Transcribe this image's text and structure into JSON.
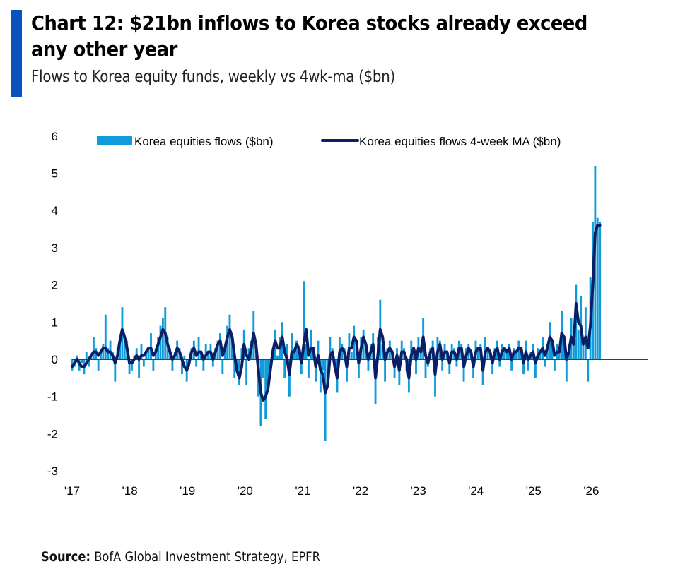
{
  "header": {
    "title": "Chart 12: $21bn inflows to Korea stocks already exceed any other year",
    "subtitle": "Flows to Korea equity funds, weekly vs 4wk-ma ($bn)"
  },
  "footer": {
    "source_label": "Source:",
    "source_text": "BofA Global Investment Strategy, EPFR"
  },
  "colors": {
    "accent": "#0a52be",
    "bars": "#129bdb",
    "ma_line": "#0b1f66",
    "zero_line": "#404040"
  },
  "chart_data": {
    "type": "bar",
    "title": "Chart 12: $21bn inflows to Korea stocks already exceed any other year",
    "subtitle": "Flows to Korea equity funds, weekly vs 4wk-ma ($bn)",
    "xlabel": "",
    "ylabel": "",
    "ylim": [
      -3,
      6
    ],
    "yticks": [
      6,
      5,
      4,
      3,
      2,
      1,
      0,
      -1,
      -2,
      -3
    ],
    "xlim": [
      2017.0,
      2026.9
    ],
    "xticks": [
      {
        "x": 2017,
        "label": "'17"
      },
      {
        "x": 2018,
        "label": "'18"
      },
      {
        "x": 2019,
        "label": "'19"
      },
      {
        "x": 2020,
        "label": "'20"
      },
      {
        "x": 2021,
        "label": "'21"
      },
      {
        "x": 2022,
        "label": "'22"
      },
      {
        "x": 2023,
        "label": "'23"
      },
      {
        "x": 2024,
        "label": "'24"
      },
      {
        "x": 2025,
        "label": "'25"
      },
      {
        "x": 2026,
        "label": "'26"
      }
    ],
    "grid": false,
    "legend_position": "top",
    "x_start": 2017.0,
    "x_step_years": 0.0417,
    "series": [
      {
        "name": "Korea equities flows ($bn)",
        "type": "bar",
        "values": [
          -0.3,
          -0.2,
          0.1,
          -0.3,
          -0.1,
          -0.4,
          0.2,
          -0.2,
          0.1,
          0.6,
          0.3,
          -0.3,
          0.2,
          0.4,
          1.2,
          0.3,
          0.5,
          0.2,
          -0.6,
          0.3,
          0.6,
          1.4,
          0.4,
          0.5,
          -0.4,
          -0.3,
          0.1,
          0.3,
          -0.5,
          0.4,
          -0.2,
          0.2,
          0.3,
          0.7,
          -0.3,
          0.3,
          0.6,
          0.9,
          1.1,
          1.4,
          0.6,
          0.3,
          -0.3,
          0.2,
          0.5,
          0.3,
          -0.4,
          0.1,
          -0.6,
          -0.2,
          0.3,
          0.5,
          -0.2,
          0.6,
          0.2,
          -0.3,
          0.4,
          0.2,
          0.4,
          -0.2,
          0.3,
          0.5,
          0.7,
          -0.4,
          0.3,
          0.9,
          1.2,
          0.5,
          -0.5,
          -0.3,
          -0.7,
          0.3,
          0.8,
          -0.7,
          0.3,
          0.5,
          1.3,
          0.4,
          -1.0,
          -1.8,
          -0.5,
          -1.6,
          -0.9,
          -0.3,
          0.3,
          0.8,
          0.1,
          0.6,
          1.0,
          -0.5,
          0.4,
          -1.0,
          0.7,
          0.2,
          0.5,
          0.3,
          -0.4,
          2.1,
          0.4,
          -0.5,
          0.8,
          0.3,
          -0.6,
          0.5,
          -0.9,
          -0.3,
          -2.2,
          -0.7,
          0.6,
          0.3,
          -0.3,
          -0.9,
          0.6,
          0.4,
          0.3,
          -0.6,
          0.7,
          0.2,
          0.9,
          0.5,
          -0.5,
          0.6,
          0.8,
          0.2,
          -0.3,
          0.4,
          0.7,
          -1.2,
          0.6,
          1.6,
          0.4,
          -0.6,
          0.3,
          0.5,
          0.2,
          -0.5,
          0.3,
          -0.7,
          0.5,
          0.3,
          -0.3,
          -0.9,
          0.5,
          0.3,
          -0.4,
          0.6,
          0.2,
          1.1,
          -0.5,
          -0.2,
          0.3,
          0.5,
          -1.0,
          0.6,
          0.5,
          -0.3,
          0.4,
          0.2,
          -0.4,
          0.4,
          0.3,
          -0.2,
          0.5,
          0.4,
          -0.6,
          0.3,
          0.4,
          0.2,
          -0.5,
          0.5,
          0.3,
          0.4,
          -0.7,
          0.6,
          0.3,
          0.2,
          -0.4,
          0.3,
          0.5,
          -0.2,
          0.4,
          0.3,
          0.2,
          0.4,
          -0.3,
          0.3,
          0.2,
          0.5,
          0.3,
          -0.4,
          0.5,
          -0.3,
          0.2,
          0.4,
          -0.5,
          0.3,
          0.2,
          0.6,
          -0.2,
          0.4,
          1.0,
          0.5,
          -0.3,
          0.4,
          0.2,
          1.3,
          0.6,
          -0.6,
          0.4,
          1.1,
          0.5,
          2.0,
          0.8,
          1.7,
          0.4,
          1.4,
          -0.6,
          2.2,
          3.7,
          5.2,
          3.8,
          3.7
        ]
      },
      {
        "name": "Korea equities flows 4-week MA ($bn)",
        "type": "line",
        "values": [
          -0.2,
          -0.1,
          0.0,
          -0.1,
          -0.2,
          -0.2,
          -0.1,
          0.0,
          0.1,
          0.2,
          0.2,
          0.1,
          0.2,
          0.3,
          0.3,
          0.2,
          0.2,
          0.1,
          -0.1,
          0.1,
          0.5,
          0.8,
          0.6,
          0.3,
          -0.1,
          -0.1,
          0.0,
          0.1,
          0.0,
          0.1,
          0.1,
          0.2,
          0.3,
          0.3,
          0.1,
          0.2,
          0.4,
          0.6,
          0.8,
          0.7,
          0.4,
          0.2,
          0.0,
          0.1,
          0.3,
          0.2,
          0.0,
          -0.2,
          -0.3,
          -0.1,
          0.2,
          0.3,
          0.1,
          0.2,
          0.2,
          0.0,
          0.1,
          0.2,
          0.2,
          0.0,
          0.2,
          0.4,
          0.5,
          0.1,
          0.3,
          0.6,
          0.8,
          0.6,
          0.1,
          -0.3,
          -0.5,
          -0.2,
          0.4,
          0.1,
          0.0,
          0.3,
          0.7,
          0.4,
          -0.3,
          -0.9,
          -1.1,
          -1.0,
          -0.8,
          -0.3,
          0.2,
          0.5,
          0.3,
          0.3,
          0.6,
          0.2,
          0.0,
          -0.4,
          0.2,
          0.2,
          0.4,
          0.3,
          -0.1,
          0.4,
          0.8,
          0.1,
          0.3,
          0.3,
          -0.2,
          0.1,
          -0.3,
          -0.4,
          -0.9,
          -0.7,
          0.1,
          0.2,
          -0.2,
          -0.5,
          0.2,
          0.3,
          0.2,
          -0.2,
          0.3,
          0.3,
          0.6,
          0.5,
          -0.1,
          0.3,
          0.6,
          0.4,
          0.0,
          0.2,
          0.4,
          -0.5,
          0.1,
          0.8,
          0.6,
          0.0,
          0.2,
          0.3,
          0.2,
          -0.2,
          0.1,
          -0.3,
          0.2,
          0.2,
          0.0,
          -0.5,
          0.1,
          0.3,
          0.0,
          0.3,
          0.2,
          0.6,
          0.1,
          -0.1,
          0.2,
          0.3,
          -0.4,
          0.2,
          0.4,
          0.0,
          0.2,
          0.2,
          -0.1,
          0.2,
          0.2,
          0.0,
          0.3,
          0.3,
          -0.2,
          0.1,
          0.3,
          0.2,
          -0.2,
          0.2,
          0.3,
          0.3,
          -0.3,
          0.2,
          0.3,
          0.2,
          -0.1,
          0.2,
          0.3,
          0.0,
          0.2,
          0.3,
          0.2,
          0.3,
          0.0,
          0.2,
          0.2,
          0.3,
          0.3,
          -0.1,
          0.2,
          0.0,
          0.1,
          0.2,
          -0.1,
          0.1,
          0.2,
          0.3,
          0.1,
          0.3,
          0.6,
          0.5,
          0.1,
          0.2,
          0.2,
          0.7,
          0.6,
          0.0,
          0.2,
          0.6,
          0.4,
          1.5,
          1.0,
          0.9,
          0.4,
          0.6,
          0.3,
          0.9,
          2.0,
          3.4,
          3.6,
          3.6
        ]
      }
    ],
    "annotations": []
  }
}
